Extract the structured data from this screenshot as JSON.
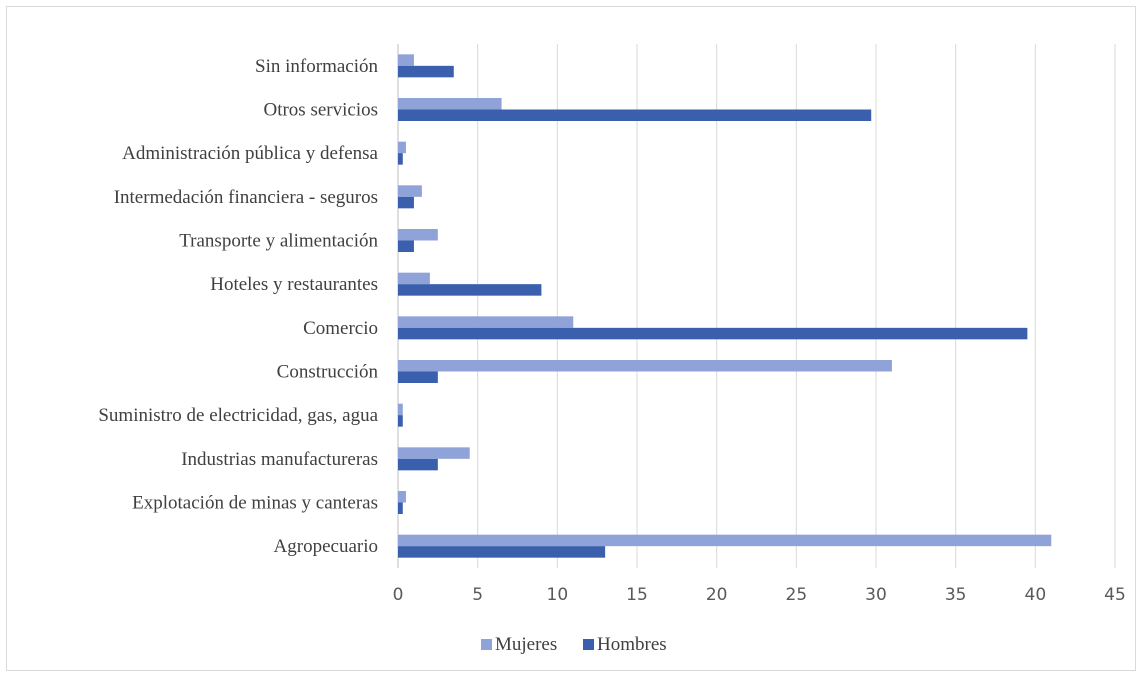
{
  "chart_data": {
    "type": "bar",
    "orientation": "horizontal",
    "categories": [
      "Agropecuario",
      "Explotación de minas y canteras",
      "Industrias manufactureras",
      "Suministro de electricidad, gas, agua",
      "Construcción",
      "Comercio",
      "Hoteles y restaurantes",
      "Transporte y alimentación",
      "Intermedación financiera - seguros",
      "Administración pública y defensa",
      "Otros servicios",
      "Sin información"
    ],
    "series": [
      {
        "name": "Mujeres",
        "color": "#8fa3d9",
        "values": [
          41,
          0.5,
          4.5,
          0.3,
          31,
          11,
          2,
          2.5,
          1.5,
          0.5,
          6.5,
          1
        ]
      },
      {
        "name": "Hombres",
        "color": "#3a5fad",
        "values": [
          13,
          0.3,
          2.5,
          0.3,
          2.5,
          39.5,
          9,
          1,
          1,
          0.3,
          29.7,
          3.5
        ]
      }
    ],
    "xlim": [
      0,
      45
    ],
    "xticks": [
      "0",
      "5",
      "10",
      "15",
      "20",
      "25",
      "30",
      "35",
      "40",
      "45"
    ],
    "title": "",
    "xlabel": "",
    "ylabel": "",
    "grid": "vertical",
    "legend": "bottom"
  }
}
